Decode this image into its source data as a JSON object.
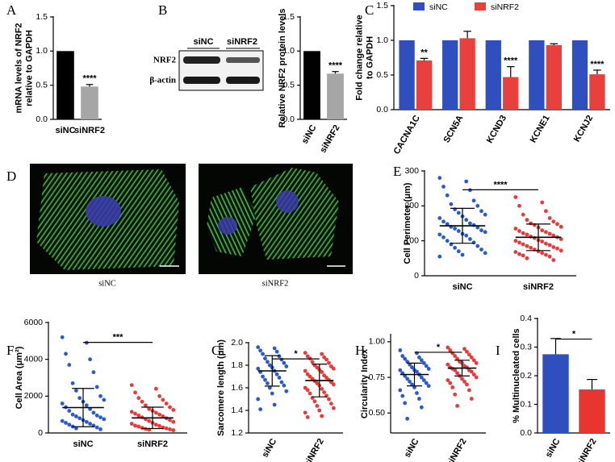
{
  "chart_data": [
    {
      "type": "bar",
      "panel": "A",
      "ylabel": [
        "mRNA levels of NRF2",
        "relative to GAPDH"
      ],
      "categories": [
        "siNC",
        "siNRF2"
      ],
      "values": [
        1.0,
        0.48
      ],
      "errors": [
        null,
        0.03
      ],
      "colors": [
        "#000000",
        "#a6a6a6"
      ],
      "annotations": [
        null,
        "****"
      ],
      "rotate_xlabels": false,
      "ylim": [
        0,
        1.5
      ],
      "yticks": [
        {
          "value": 0,
          "label": "0.0"
        },
        0.5,
        {
          "value": 1,
          "label": "1.0"
        },
        1.5
      ]
    },
    {
      "type": "bar",
      "panel": "B",
      "ylabel": [
        "Relative NRF2 protein levels"
      ],
      "categories": [
        "siNC",
        "siNRF2"
      ],
      "values": [
        1.0,
        0.67
      ],
      "errors": [
        null,
        0.03
      ],
      "colors": [
        "#000000",
        "#a6a6a6"
      ],
      "annotations": [
        null,
        "****"
      ],
      "rotate_xlabels": true,
      "ylim": [
        0,
        1.5
      ],
      "yticks": [
        {
          "value": 0,
          "label": "0.0"
        },
        0.5,
        {
          "value": 1,
          "label": "1.0"
        },
        1.5
      ]
    },
    {
      "type": "grouped_bar",
      "panel": "C",
      "ylabel": [
        "Fold change relative",
        "to GAPDH"
      ],
      "categories": [
        "CACNA1C",
        "SCN5A",
        "KCND3",
        "KCNE1",
        "KCNJ2"
      ],
      "series": [
        {
          "name": "siNC",
          "color": "#2f4fbf",
          "values": [
            1.0,
            1.0,
            1.0,
            1.0,
            1.0
          ]
        },
        {
          "name": "siNRF2",
          "color": "#e8403c",
          "values": [
            0.71,
            1.03,
            0.47,
            0.93,
            0.51
          ],
          "errors": [
            0.03,
            0.1,
            0.15,
            0.02,
            0.06
          ]
        }
      ],
      "annotations": [
        "**",
        null,
        "****",
        null,
        "****"
      ],
      "legend": "top",
      "rotate_xlabels": true,
      "ylim": [
        0,
        1.5
      ],
      "yticks": [
        {
          "value": 0,
          "label": "0.0"
        },
        0.5,
        {
          "value": 1,
          "label": "1.0"
        },
        1.5
      ]
    },
    {
      "type": "dot",
      "panel": "E",
      "ylabel": [
        "Cell Perimeter (μm)"
      ],
      "categories": [
        "siNC",
        "siNRF2"
      ],
      "significance": "****",
      "rotate_xlabels": false,
      "groups": [
        {
          "color": "#2a5cc7",
          "mean": 143,
          "sd": 50,
          "values": [
            280,
            270,
            255,
            245,
            230,
            215,
            205,
            200,
            190,
            185,
            180,
            175,
            170,
            165,
            160,
            155,
            150,
            148,
            145,
            140,
            138,
            135,
            130,
            128,
            125,
            120,
            118,
            115,
            110,
            105,
            100,
            95,
            90,
            85,
            80,
            75,
            70,
            65,
            60,
            55
          ]
        },
        {
          "color": "#e83a3a",
          "mean": 110,
          "sd": 38,
          "values": [
            225,
            210,
            200,
            185,
            175,
            165,
            160,
            155,
            150,
            148,
            145,
            140,
            138,
            135,
            130,
            128,
            125,
            122,
            120,
            118,
            115,
            112,
            110,
            108,
            105,
            102,
            100,
            98,
            95,
            92,
            90,
            88,
            85,
            82,
            80,
            78,
            75,
            72,
            70,
            68,
            65,
            62,
            60,
            58,
            55,
            50,
            45
          ]
        }
      ],
      "ylim": [
        0,
        300
      ],
      "yticks": [
        0,
        100,
        200,
        300
      ]
    },
    {
      "type": "dot",
      "panel": "F",
      "ylabel": [
        "Cell Area (μm²)"
      ],
      "categories": [
        "siNC",
        "siNRF2"
      ],
      "significance": "***",
      "rotate_xlabels": false,
      "groups": [
        {
          "color": "#2a5cc7",
          "mean": 1380,
          "sd": 1040,
          "values": [
            5200,
            4900,
            4300,
            4000,
            3700,
            3300,
            2700,
            2500,
            2300,
            2000,
            1900,
            1800,
            1700,
            1600,
            1500,
            1400,
            1300,
            1200,
            1100,
            1000,
            950,
            900,
            850,
            800,
            750,
            700,
            650,
            600,
            550,
            500,
            450,
            400,
            350,
            300,
            250,
            200
          ]
        },
        {
          "color": "#e83a3a",
          "mean": 820,
          "sd": 580,
          "values": [
            2600,
            2400,
            2200,
            2000,
            1900,
            1800,
            1700,
            1600,
            1500,
            1400,
            1300,
            1250,
            1200,
            1150,
            1100,
            1050,
            1000,
            950,
            900,
            850,
            800,
            750,
            700,
            650,
            600,
            550,
            500,
            450,
            400,
            380,
            350,
            300,
            280,
            250,
            220,
            200,
            180,
            150
          ]
        }
      ],
      "ylim": [
        0,
        6000
      ],
      "yticks": [
        0,
        2000,
        4000,
        6000
      ]
    },
    {
      "type": "dot",
      "panel": "G",
      "ylabel": [
        "Sarcomere length (μm)"
      ],
      "categories": [
        "siNC",
        "siNRF2"
      ],
      "significance": "*",
      "rotate_xlabels": true,
      "groups": [
        {
          "color": "#2a5cc7",
          "mean": 1.75,
          "sd": 0.135,
          "values": [
            1.96,
            1.95,
            1.93,
            1.92,
            1.9,
            1.88,
            1.86,
            1.85,
            1.83,
            1.82,
            1.8,
            1.79,
            1.78,
            1.77,
            1.75,
            1.74,
            1.72,
            1.7,
            1.69,
            1.67,
            1.65,
            1.64,
            1.62,
            1.6,
            1.57,
            1.55,
            1.5,
            1.45,
            1.41
          ]
        },
        {
          "color": "#e83a3a",
          "mean": 1.665,
          "sd": 0.145,
          "values": [
            1.91,
            1.9,
            1.88,
            1.87,
            1.86,
            1.85,
            1.83,
            1.82,
            1.8,
            1.79,
            1.78,
            1.77,
            1.76,
            1.75,
            1.74,
            1.72,
            1.71,
            1.7,
            1.69,
            1.68,
            1.67,
            1.66,
            1.65,
            1.64,
            1.63,
            1.62,
            1.6,
            1.59,
            1.58,
            1.56,
            1.55,
            1.53,
            1.51,
            1.5,
            1.48,
            1.46,
            1.44,
            1.42,
            1.4,
            1.38,
            1.35,
            1.34
          ]
        }
      ],
      "ylim": [
        1.2,
        2.0
      ],
      "yticks": [
        1.2,
        1.4,
        1.6,
        1.8,
        {
          "value": 2,
          "label": "2.0"
        }
      ]
    },
    {
      "type": "dot",
      "panel": "H",
      "ylabel": [
        "Circularity Index"
      ],
      "categories": [
        "siNC",
        "siNRF2"
      ],
      "significance": "*",
      "rotate_xlabels": true,
      "groups": [
        {
          "color": "#2a5cc7",
          "mean": 0.77,
          "sd": 0.08,
          "values": [
            0.94,
            0.92,
            0.9,
            0.89,
            0.88,
            0.87,
            0.86,
            0.85,
            0.84,
            0.83,
            0.82,
            0.81,
            0.8,
            0.8,
            0.79,
            0.78,
            0.77,
            0.76,
            0.75,
            0.74,
            0.73,
            0.72,
            0.71,
            0.7,
            0.69,
            0.68,
            0.66,
            0.64,
            0.62,
            0.6,
            0.57,
            0.54,
            0.46
          ]
        },
        {
          "color": "#e83a3a",
          "mean": 0.815,
          "sd": 0.055,
          "values": [
            0.96,
            0.95,
            0.94,
            0.93,
            0.92,
            0.91,
            0.9,
            0.89,
            0.88,
            0.87,
            0.86,
            0.85,
            0.85,
            0.84,
            0.83,
            0.82,
            0.82,
            0.81,
            0.8,
            0.8,
            0.79,
            0.78,
            0.77,
            0.76,
            0.75,
            0.74,
            0.73,
            0.72,
            0.71,
            0.7,
            0.68,
            0.66,
            0.63,
            0.6,
            0.55
          ]
        }
      ],
      "ylim": [
        0.36,
        1.05
      ],
      "yticks": [
        {
          "value": 0.5,
          "label": "0.50"
        },
        0.75,
        {
          "value": 1,
          "label": "1.00"
        }
      ]
    },
    {
      "type": "bar",
      "panel": "I",
      "ylabel": [
        "% Multinucleated cells"
      ],
      "categories": [
        "siNC",
        "siNRF2"
      ],
      "values": [
        0.275,
        0.152
      ],
      "errors": [
        0.055,
        0.035
      ],
      "colors": [
        "#2f4fbf",
        "#e8352f"
      ],
      "significance": "*",
      "rotate_xlabels": true,
      "ylim": [
        0,
        0.4
      ],
      "yticks": [
        {
          "value": 0,
          "label": "0.0"
        },
        0.1,
        0.2,
        0.3,
        0.4
      ]
    }
  ],
  "figure": {
    "blot": {
      "lanes": [
        "siNC",
        "siNRF2"
      ],
      "bands": [
        "NRF2",
        "β-actin"
      ]
    },
    "microscopy": {
      "panel": "D",
      "labels": [
        "siNC",
        "siNRF2"
      ]
    }
  }
}
